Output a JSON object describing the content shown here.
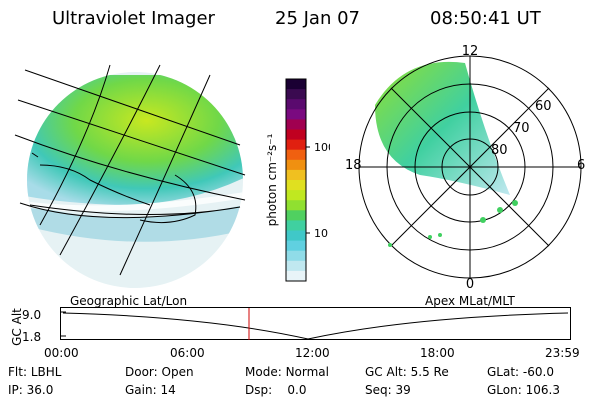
{
  "header": {
    "title": "Ultraviolet Imager",
    "date": "25 Jan 07",
    "time": "08:50:41 UT"
  },
  "colorbar": {
    "unit_label": "photon cm⁻²s⁻¹",
    "ticks": [
      "100",
      "10"
    ],
    "colors": [
      "#1a0033",
      "#3a0a50",
      "#5a0a6e",
      "#7a0a80",
      "#a00050",
      "#c00020",
      "#e02010",
      "#f06010",
      "#f09010",
      "#f0c020",
      "#e0e020",
      "#c0e820",
      "#90e030",
      "#50d060",
      "#40d0a0",
      "#40c8c8",
      "#60d0e0",
      "#90dce8",
      "#c0e8f0",
      "#e8f4f8"
    ]
  },
  "polar_plot": {
    "mlt_labels": [
      "12",
      "18",
      "6",
      "0"
    ],
    "mlat_labels": [
      "60",
      "70",
      "80"
    ]
  },
  "timeline": {
    "left_title": "Geographic Lat/Lon",
    "right_title": "Apex MLat/MLT",
    "y_axis_label": "GC Alt",
    "y_ticks": [
      "9.0",
      "1.8"
    ],
    "x_ticks": [
      "00:00",
      "06:00",
      "12:00",
      "18:00",
      "23:59"
    ],
    "current_time_marker": "08:50"
  },
  "status": {
    "flt_label": "Flt:",
    "flt_value": "LBHL",
    "ip_label": "IP:",
    "ip_value": "36.0",
    "door_label": "Door:",
    "door_value": "Open",
    "gain_label": "Gain:",
    "gain_value": "14",
    "mode_label": "Mode:",
    "mode_value": "Normal",
    "dsp_label": "Dsp:",
    "dsp_value": "0.0",
    "gcalt_label": "GC Alt:",
    "gcalt_value": "5.5 Re",
    "seq_label": "Seq:",
    "seq_value": "39",
    "glat_label": "GLat:",
    "glat_value": "-60.0",
    "glon_label": "GLon:",
    "glon_value": "106.3"
  },
  "accent_red": "#d00000"
}
